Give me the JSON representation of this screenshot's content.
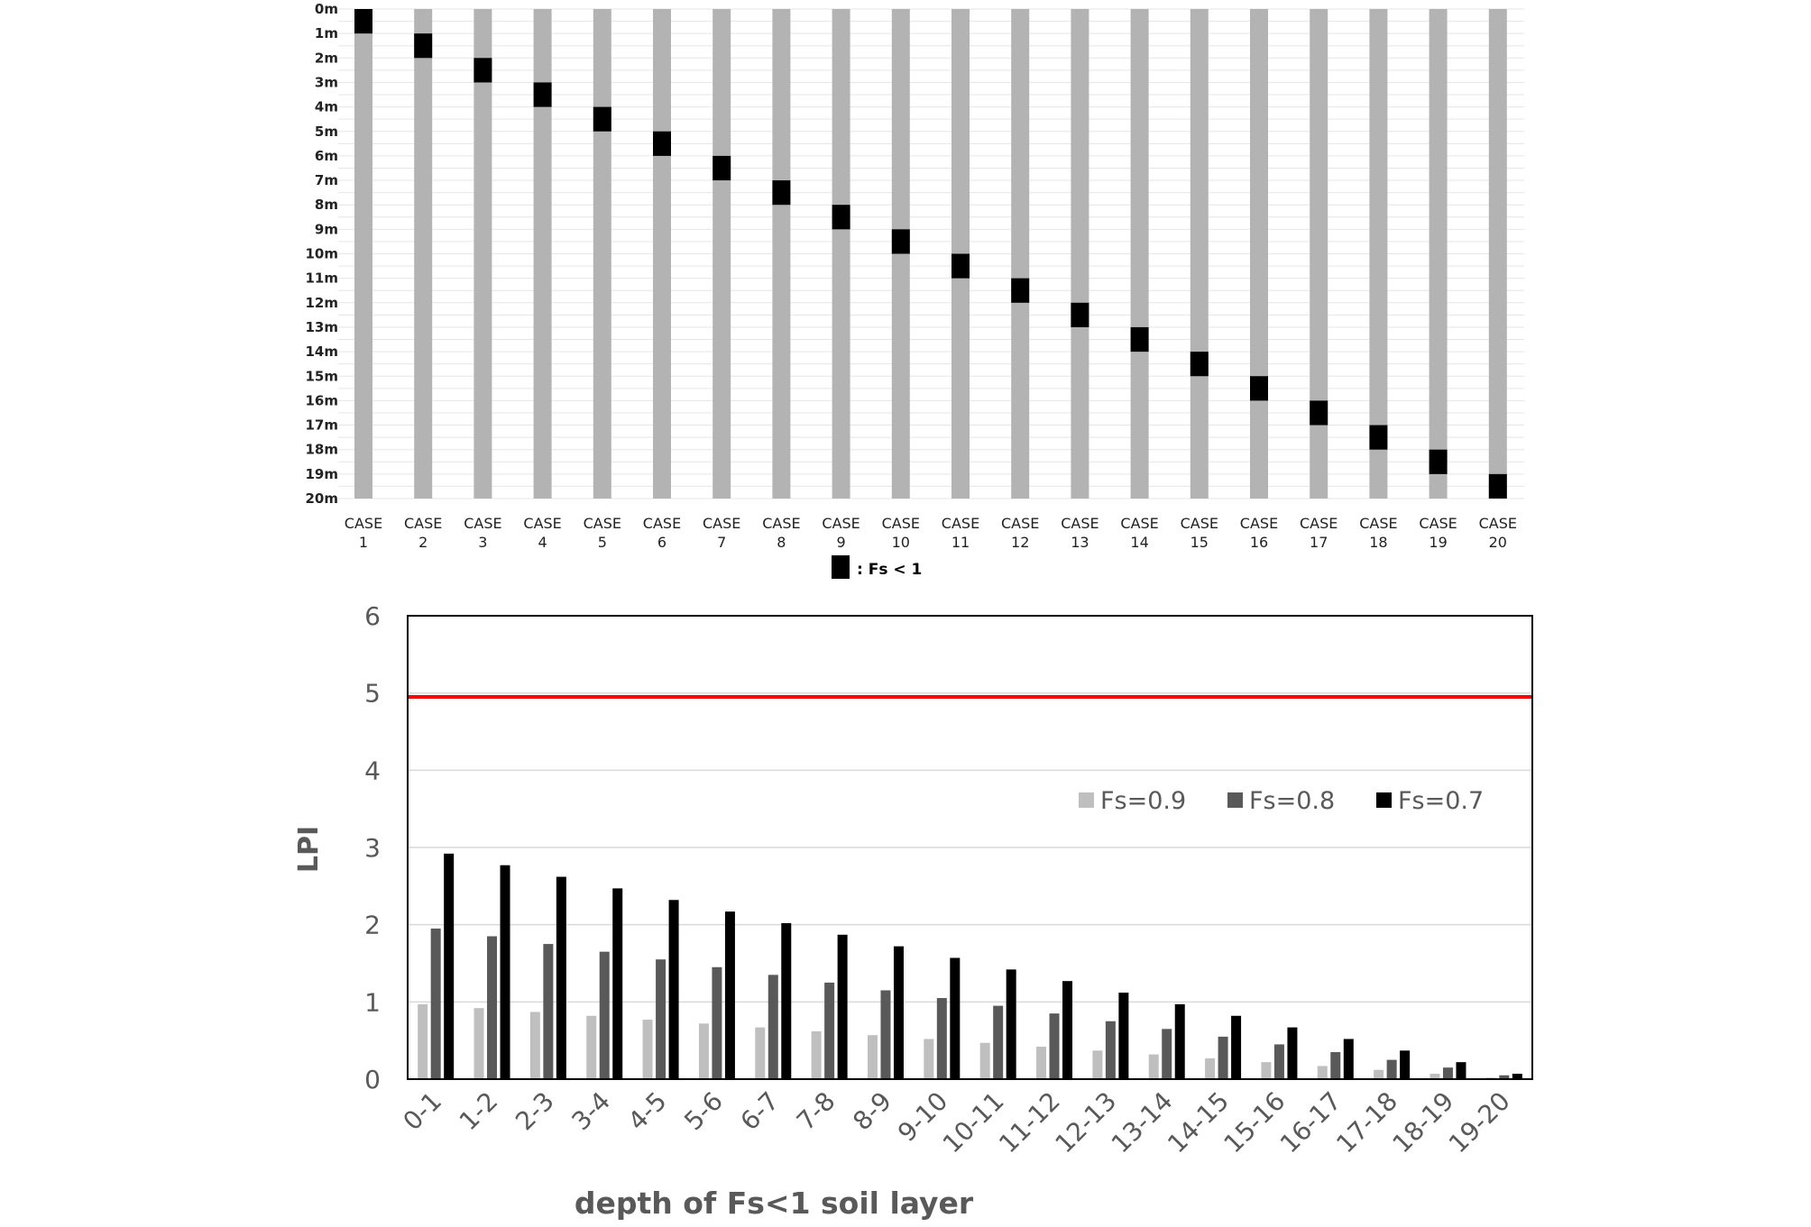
{
  "chart_data": [
    {
      "type": "bar",
      "orientation": "vertical-columns",
      "categories": [
        "CASE 1",
        "CASE 2",
        "CASE 3",
        "CASE 4",
        "CASE 5",
        "CASE 6",
        "CASE 7",
        "CASE 8",
        "CASE 9",
        "CASE 10",
        "CASE 11",
        "CASE 12",
        "CASE 13",
        "CASE 14",
        "CASE 15",
        "CASE 16",
        "CASE 17",
        "CASE 18",
        "CASE 19",
        "CASE 20"
      ],
      "category_lines": [
        [
          "CASE",
          "1"
        ],
        [
          "CASE",
          "2"
        ],
        [
          "CASE",
          "3"
        ],
        [
          "CASE",
          "4"
        ],
        [
          "CASE",
          "5"
        ],
        [
          "CASE",
          "6"
        ],
        [
          "CASE",
          "7"
        ],
        [
          "CASE",
          "8"
        ],
        [
          "CASE",
          "9"
        ],
        [
          "CASE",
          "10"
        ],
        [
          "CASE",
          "11"
        ],
        [
          "CASE",
          "12"
        ],
        [
          "CASE",
          "13"
        ],
        [
          "CASE",
          "14"
        ],
        [
          "CASE",
          "15"
        ],
        [
          "CASE",
          "16"
        ],
        [
          "CASE",
          "17"
        ],
        [
          "CASE",
          "18"
        ],
        [
          "CASE",
          "19"
        ],
        [
          "CASE",
          "20"
        ]
      ],
      "depth_labels": [
        "0m",
        "1m",
        "2m",
        "3m",
        "4m",
        "5m",
        "6m",
        "7m",
        "8m",
        "9m",
        "10m",
        "11m",
        "12m",
        "13m",
        "14m",
        "15m",
        "16m",
        "17m",
        "18m",
        "19m",
        "20m"
      ],
      "depth_range": [
        0,
        20
      ],
      "fs_lt1_layers": [
        [
          0,
          1
        ],
        [
          1,
          2
        ],
        [
          2,
          3
        ],
        [
          3,
          4
        ],
        [
          4,
          5
        ],
        [
          5,
          6
        ],
        [
          6,
          7
        ],
        [
          7,
          8
        ],
        [
          8,
          9
        ],
        [
          9,
          10
        ],
        [
          10,
          11
        ],
        [
          11,
          12
        ],
        [
          12,
          13
        ],
        [
          13,
          14
        ],
        [
          14,
          15
        ],
        [
          15,
          16
        ],
        [
          16,
          17
        ],
        [
          17,
          18
        ],
        [
          18,
          19
        ],
        [
          19,
          20
        ]
      ],
      "legend": {
        "label": ": Fs < 1",
        "placement": "bottom-center"
      },
      "colors": {
        "column": "#b3b3b3",
        "fs_lt1": "#000000",
        "grid": "#e6e6e6"
      },
      "grid": true
    },
    {
      "type": "bar",
      "categories": [
        "0-1",
        "1-2",
        "2-3",
        "3-4",
        "4-5",
        "5-6",
        "6-7",
        "7-8",
        "8-9",
        "9-10",
        "10-11",
        "11-12",
        "12-13",
        "13-14",
        "14-15",
        "15-16",
        "16-17",
        "17-18",
        "18-19",
        "19-20"
      ],
      "series": [
        {
          "name": "Fs=0.9",
          "color": "#bfbfbf",
          "values": [
            0.97,
            0.92,
            0.87,
            0.82,
            0.77,
            0.72,
            0.67,
            0.62,
            0.57,
            0.52,
            0.47,
            0.42,
            0.37,
            0.32,
            0.27,
            0.22,
            0.17,
            0.12,
            0.07,
            0.02
          ]
        },
        {
          "name": "Fs=0.8",
          "color": "#595959",
          "values": [
            1.95,
            1.85,
            1.75,
            1.65,
            1.55,
            1.45,
            1.35,
            1.25,
            1.15,
            1.05,
            0.95,
            0.85,
            0.75,
            0.65,
            0.55,
            0.45,
            0.35,
            0.25,
            0.15,
            0.05
          ]
        },
        {
          "name": "Fs=0.7",
          "color": "#000000",
          "values": [
            2.92,
            2.77,
            2.62,
            2.47,
            2.32,
            2.17,
            2.02,
            1.87,
            1.72,
            1.57,
            1.42,
            1.27,
            1.12,
            0.97,
            0.82,
            0.67,
            0.52,
            0.37,
            0.22,
            0.07
          ]
        }
      ],
      "xlabel": "depth of Fs<1 soil layer",
      "ylabel": "LPI",
      "ylim": [
        0,
        6
      ],
      "yticks": [
        "0",
        "1",
        "2",
        "3",
        "4",
        "5",
        "6"
      ],
      "reference_line": {
        "y": 4.95,
        "color": "#ff0000"
      },
      "legend": {
        "placement": "top-right"
      },
      "grid": true
    }
  ]
}
